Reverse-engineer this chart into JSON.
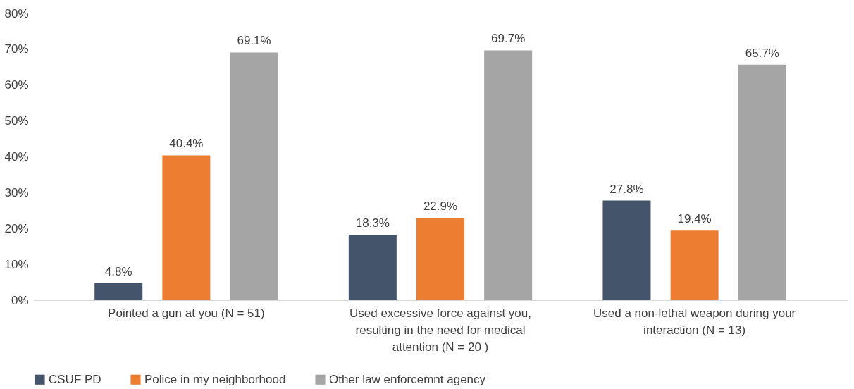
{
  "chart_data": {
    "type": "bar",
    "categories": [
      "Pointed a gun at you (N = 51)",
      "Used excessive force against you, resulting in the need for medical attention (N = 20 )",
      "Used a non-lethal weapon during your interaction (N = 13)"
    ],
    "series": [
      {
        "name": "CSUF PD",
        "color": "#44546a",
        "values": [
          4.8,
          18.3,
          27.8
        ]
      },
      {
        "name": "Police in my neighborhood",
        "color": "#ed7d31",
        "values": [
          40.4,
          22.9,
          19.4
        ]
      },
      {
        "name": "Other law enforcemnt agency",
        "color": "#a5a5a5",
        "values": [
          69.1,
          69.7,
          65.7
        ]
      }
    ],
    "ylim": [
      0,
      80
    ],
    "yticks": [
      {
        "value": 0,
        "label": "0%"
      },
      {
        "value": 10,
        "label": "10%"
      },
      {
        "value": 20,
        "label": "20%"
      },
      {
        "value": 30,
        "label": "30%"
      },
      {
        "value": 40,
        "label": "40%"
      },
      {
        "value": 50,
        "label": "50%"
      },
      {
        "value": 60,
        "label": "60%"
      },
      {
        "value": 70,
        "label": "70%"
      },
      {
        "value": 80,
        "label": "80%"
      }
    ],
    "value_labels": [
      [
        "4.8%",
        "18.3%",
        "27.8%"
      ],
      [
        "40.4%",
        "22.9%",
        "19.4%"
      ],
      [
        "69.1%",
        "69.7%",
        "65.7%"
      ]
    ],
    "grid": false,
    "legend": "bottom"
  }
}
